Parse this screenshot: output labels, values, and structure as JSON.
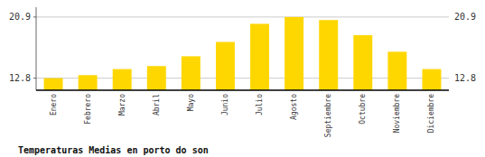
{
  "chart_data": {
    "type": "bar",
    "title": "Temperaturas Medias en porto do son",
    "categories": [
      "Enero",
      "Febrero",
      "Marzo",
      "Abril",
      "Mayo",
      "Junio",
      "Julio",
      "Agosto",
      "Septiembre",
      "Octubre",
      "Noviembre",
      "Diciembre"
    ],
    "values": [
      12.8,
      13.2,
      14.0,
      14.4,
      15.7,
      17.6,
      20.0,
      20.9,
      20.5,
      18.5,
      16.3,
      14.0
    ],
    "color": "#FFD700",
    "ylim": [
      11.2,
      22.2
    ],
    "yticks": [
      12.8,
      20.9
    ],
    "grid": true
  }
}
